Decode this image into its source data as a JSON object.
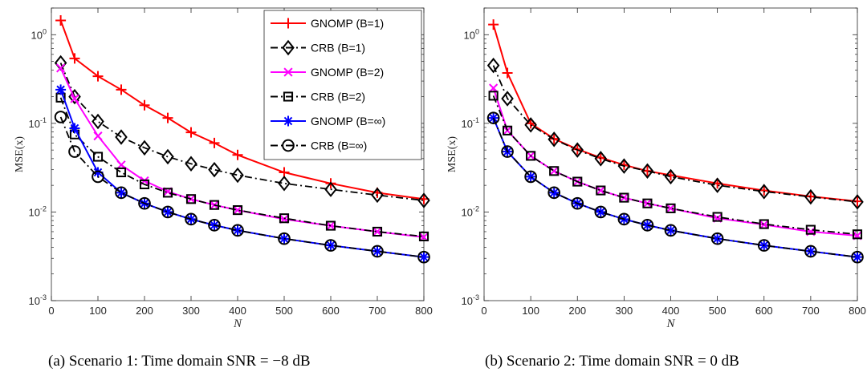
{
  "figure": {
    "captions": [
      {
        "label": "(a)",
        "text": "Scenario 1: Time domain",
        "math": "SNR = −8 dB"
      },
      {
        "label": "(b)",
        "text": "Scenario 2: Time domain",
        "math": "SNR = 0 dB"
      }
    ]
  },
  "chart_data": [
    {
      "type": "line",
      "title": "",
      "xlabel": "N",
      "ylabel": "MSE(x)",
      "xlim": [
        0,
        800
      ],
      "ylim": [
        0.001,
        2
      ],
      "yscale": "log",
      "xticks": [
        0,
        100,
        200,
        300,
        400,
        500,
        600,
        700,
        800
      ],
      "yticks": [
        {
          "value": 0.001,
          "base": "10",
          "exp": "-3"
        },
        {
          "value": 0.01,
          "base": "10",
          "exp": "-2"
        },
        {
          "value": 0.1,
          "base": "10",
          "exp": "-1"
        },
        {
          "value": 1,
          "base": "10",
          "exp": "0"
        }
      ],
      "grid": false,
      "legend_position": "top-right",
      "x": [
        20,
        50,
        100,
        150,
        200,
        250,
        300,
        350,
        400,
        500,
        600,
        700,
        800
      ],
      "series": [
        {
          "name": "GNOMP (B=1)",
          "color": "#ff0000",
          "marker": "plus",
          "dash": "solid",
          "values": [
            1.45,
            0.54,
            0.34,
            0.24,
            0.16,
            0.115,
            0.079,
            0.06,
            0.044,
            0.028,
            0.021,
            0.0165,
            0.014
          ]
        },
        {
          "name": "CRB (B=1)",
          "color": "#000000",
          "marker": "diamond",
          "dash": "dashdot",
          "values": [
            0.48,
            0.2,
            0.105,
            0.07,
            0.053,
            0.042,
            0.035,
            0.03,
            0.026,
            0.021,
            0.018,
            0.0155,
            0.0135
          ]
        },
        {
          "name": "GNOMP (B=2)",
          "color": "#ff00ff",
          "marker": "cross",
          "dash": "solid",
          "values": [
            0.42,
            0.19,
            0.072,
            0.034,
            0.0225,
            0.017,
            0.014,
            0.012,
            0.0105,
            0.0083,
            0.007,
            0.006,
            0.0052
          ]
        },
        {
          "name": "CRB (B=2)",
          "color": "#000000",
          "marker": "square",
          "dash": "dashdot",
          "values": [
            0.195,
            0.075,
            0.042,
            0.028,
            0.0205,
            0.0165,
            0.014,
            0.012,
            0.0105,
            0.0085,
            0.007,
            0.006,
            0.0053
          ]
        },
        {
          "name": "GNOMP (B=∞)",
          "color": "#0000ff",
          "marker": "asterisk",
          "dash": "solid",
          "values": [
            0.24,
            0.088,
            0.028,
            0.0165,
            0.0125,
            0.01,
            0.0083,
            0.0071,
            0.0062,
            0.005,
            0.0042,
            0.0036,
            0.0031
          ]
        },
        {
          "name": "CRB (B=∞)",
          "color": "#000000",
          "marker": "circle",
          "dash": "dashdot",
          "values": [
            0.118,
            0.048,
            0.025,
            0.0165,
            0.0125,
            0.01,
            0.0083,
            0.0071,
            0.0062,
            0.005,
            0.0042,
            0.0036,
            0.0031
          ]
        }
      ]
    },
    {
      "type": "line",
      "title": "",
      "xlabel": "N",
      "ylabel": "MSE(x)",
      "xlim": [
        0,
        800
      ],
      "ylim": [
        0.001,
        2
      ],
      "yscale": "log",
      "xticks": [
        0,
        100,
        200,
        300,
        400,
        500,
        600,
        700,
        800
      ],
      "yticks": [
        {
          "value": 0.001,
          "base": "10",
          "exp": "-3"
        },
        {
          "value": 0.01,
          "base": "10",
          "exp": "-2"
        },
        {
          "value": 0.1,
          "base": "10",
          "exp": "-1"
        },
        {
          "value": 1,
          "base": "10",
          "exp": "0"
        }
      ],
      "grid": false,
      "legend_position": "none",
      "x": [
        20,
        50,
        100,
        150,
        200,
        250,
        300,
        350,
        400,
        500,
        600,
        700,
        800
      ],
      "series": [
        {
          "color": "#ff0000",
          "marker": "plus",
          "dash": "solid",
          "values": [
            1.3,
            0.37,
            0.1,
            0.067,
            0.051,
            0.041,
            0.034,
            0.029,
            0.026,
            0.021,
            0.0175,
            0.015,
            0.0132
          ]
        },
        {
          "color": "#000000",
          "marker": "diamond",
          "dash": "dashdot",
          "values": [
            0.45,
            0.19,
            0.096,
            0.066,
            0.05,
            0.04,
            0.033,
            0.029,
            0.025,
            0.02,
            0.017,
            0.0148,
            0.013
          ]
        },
        {
          "color": "#ff00ff",
          "marker": "cross",
          "dash": "solid",
          "values": [
            0.25,
            0.083,
            0.043,
            0.029,
            0.022,
            0.0175,
            0.0145,
            0.0125,
            0.011,
            0.0085,
            0.0072,
            0.006,
            0.0054
          ]
        },
        {
          "color": "#000000",
          "marker": "square",
          "dash": "dashdot",
          "values": [
            0.205,
            0.083,
            0.043,
            0.029,
            0.022,
            0.0175,
            0.0145,
            0.0125,
            0.011,
            0.0088,
            0.0073,
            0.0063,
            0.0056
          ]
        },
        {
          "color": "#0000ff",
          "marker": "asterisk",
          "dash": "solid",
          "values": [
            0.115,
            0.048,
            0.025,
            0.0165,
            0.0125,
            0.01,
            0.0083,
            0.0071,
            0.0062,
            0.005,
            0.0042,
            0.0036,
            0.0031
          ]
        },
        {
          "color": "#000000",
          "marker": "circle",
          "dash": "dashdot",
          "values": [
            0.115,
            0.048,
            0.025,
            0.0165,
            0.0125,
            0.01,
            0.0083,
            0.0071,
            0.0062,
            0.005,
            0.0042,
            0.0036,
            0.0031
          ]
        }
      ]
    }
  ]
}
